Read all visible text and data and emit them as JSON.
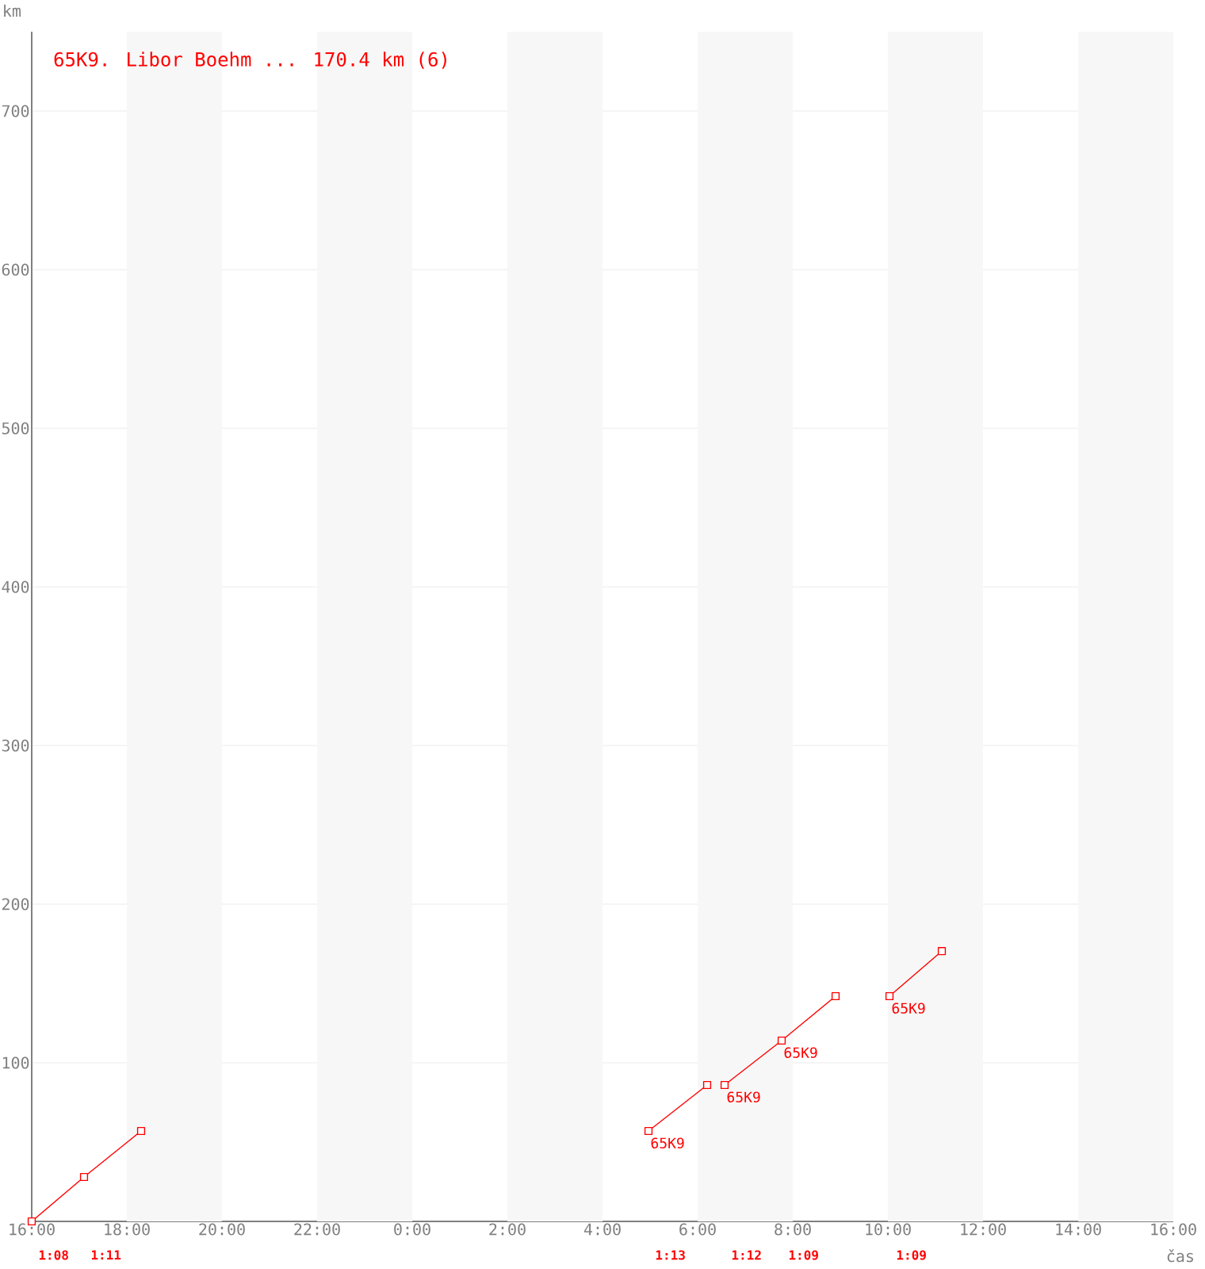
{
  "chart_data": {
    "type": "line",
    "title": "65K9. Libor Boehm ... 170.4 km (6)",
    "xlabel": "čas",
    "ylabel": "km",
    "xlim": [
      "2000-01-01T16:00",
      "2000-01-02T16:00"
    ],
    "ylim": [
      0,
      750
    ],
    "xticks": [
      {
        "value": "2000-01-01T16:00",
        "label": "16:00"
      },
      {
        "value": "2000-01-01T18:00",
        "label": "18:00"
      },
      {
        "value": "2000-01-01T20:00",
        "label": "20:00"
      },
      {
        "value": "2000-01-01T22:00",
        "label": "22:00"
      },
      {
        "value": "2000-01-02T00:00",
        "label": "0:00"
      },
      {
        "value": "2000-01-02T02:00",
        "label": "2:00"
      },
      {
        "value": "2000-01-02T04:00",
        "label": "4:00"
      },
      {
        "value": "2000-01-02T06:00",
        "label": "6:00"
      },
      {
        "value": "2000-01-02T08:00",
        "label": "8:00"
      },
      {
        "value": "2000-01-02T10:00",
        "label": "10:00"
      },
      {
        "value": "2000-01-02T12:00",
        "label": "12:00"
      },
      {
        "value": "2000-01-02T14:00",
        "label": "14:00"
      },
      {
        "value": "2000-01-02T16:00",
        "label": "16:00"
      }
    ],
    "yticks": [
      100,
      200,
      300,
      400,
      500,
      600,
      700
    ],
    "grid": "y",
    "marker": "square",
    "line_style": "solid",
    "series": [
      {
        "color": "#ff0000",
        "x": [
          "2000-01-01T16:00",
          "2000-01-01T17:06",
          "2000-01-01T18:18"
        ],
        "values": [
          0,
          28,
          57
        ]
      },
      {
        "color": "#ff0000",
        "x": [
          "2000-01-02T04:58",
          "2000-01-02T06:12"
        ],
        "values": [
          57,
          86
        ]
      },
      {
        "color": "#ff0000",
        "x": [
          "2000-01-02T06:34",
          "2000-01-02T07:46",
          "2000-01-02T08:54"
        ],
        "values": [
          86,
          114,
          142
        ]
      },
      {
        "color": "#ff0000",
        "x": [
          "2000-01-02T10:02",
          "2000-01-02T11:08"
        ],
        "values": [
          142,
          170.4
        ]
      }
    ],
    "bands": [
      {
        "axis": "x",
        "from": "2000-01-01T18:00",
        "to": "2000-01-01T20:00",
        "color": "#f7f7f7"
      },
      {
        "axis": "x",
        "from": "2000-01-01T22:00",
        "to": "2000-01-02T00:00",
        "color": "#f7f7f7"
      },
      {
        "axis": "x",
        "from": "2000-01-02T02:00",
        "to": "2000-01-02T04:00",
        "color": "#f7f7f7"
      },
      {
        "axis": "x",
        "from": "2000-01-02T06:00",
        "to": "2000-01-02T08:00",
        "color": "#f7f7f7"
      },
      {
        "axis": "x",
        "from": "2000-01-02T10:00",
        "to": "2000-01-02T12:00",
        "color": "#f7f7f7"
      },
      {
        "axis": "x",
        "from": "2000-01-02T14:00",
        "to": "2000-01-02T16:00",
        "color": "#f7f7f7"
      }
    ],
    "annotations": [
      {
        "text": "65K9",
        "x": "2000-01-02T04:58",
        "y": 57
      },
      {
        "text": "65K9",
        "x": "2000-01-02T06:34",
        "y": 86
      },
      {
        "text": "65K9",
        "x": "2000-01-02T07:46",
        "y": 114
      },
      {
        "text": "65K9",
        "x": "2000-01-02T10:02",
        "y": 142
      },
      "1:08",
      "1:11",
      "1:13",
      "1:12",
      "1:09",
      "1:09"
    ]
  }
}
